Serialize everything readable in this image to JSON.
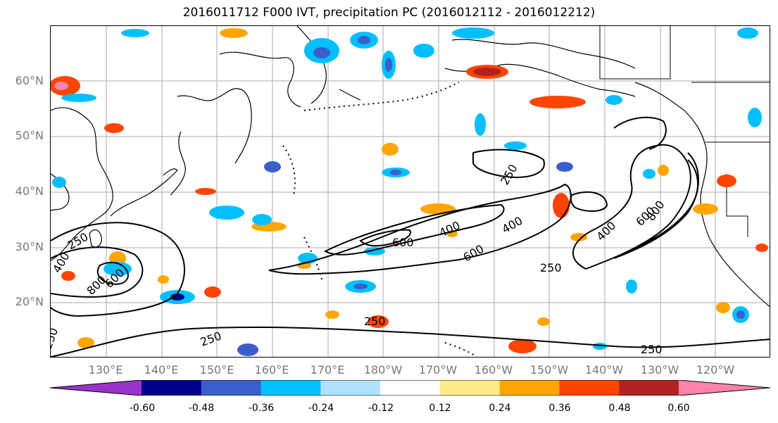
{
  "title": "2016011712 F000 IVT, precipitation PC (2016012112 - 2016012212)",
  "map": {
    "projection": "Plate Carree",
    "extent": {
      "lon_min": 120,
      "lon_max": 250,
      "lat_min": 10,
      "lat_max": 70
    },
    "lat_labels": [
      "60°N",
      "50°N",
      "40°N",
      "30°N",
      "20°N"
    ],
    "lon_labels": [
      "130°E",
      "140°E",
      "150°E",
      "160°E",
      "170°E",
      "180°W",
      "170°W",
      "160°W",
      "150°W",
      "140°W",
      "130°W",
      "120°W"
    ],
    "gridlines": true,
    "contour_labels": [
      "250",
      "250",
      "400",
      "800",
      "600",
      "600",
      "400",
      "600",
      "400",
      "250",
      "400",
      "600",
      "800",
      "250",
      "250",
      "250",
      "250"
    ]
  },
  "colorbar": {
    "colors": [
      "#9a32cd",
      "#00008b",
      "#3a5fcd",
      "#00bfff",
      "#b0e2ff",
      "#ffffff",
      "#ffeb88",
      "#ffa500",
      "#ff4500",
      "#b22222",
      "#ff82ab"
    ],
    "tick_labels": [
      "-0.60",
      "-0.48",
      "-0.36",
      "-0.24",
      "-0.12",
      "0.12",
      "0.24",
      "0.36",
      "0.48",
      "0.60"
    ],
    "extend": "both"
  }
}
